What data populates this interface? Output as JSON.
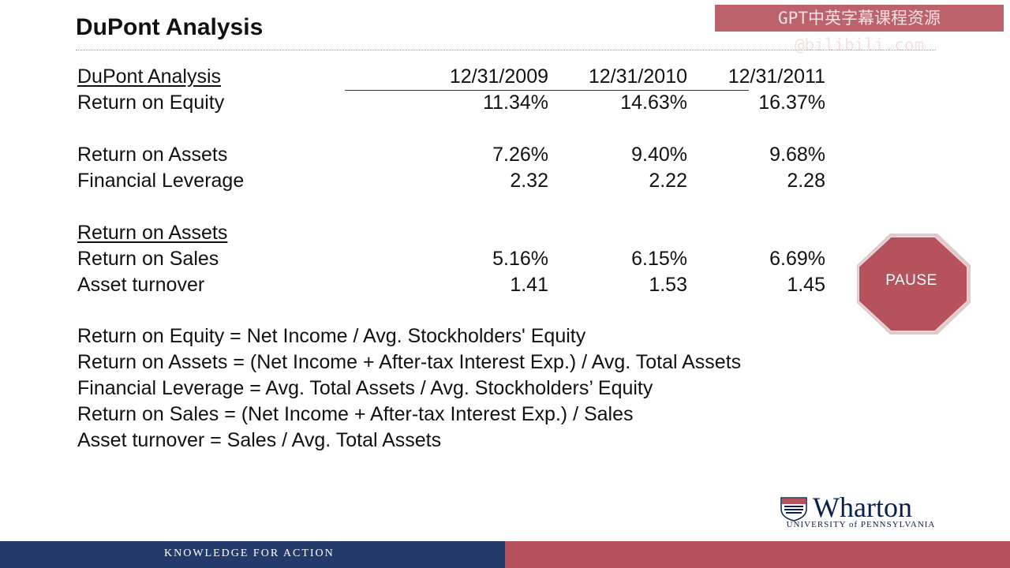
{
  "slide": {
    "title": "DuPont Analysis",
    "watermark": "GPT中英字幕课程资源@bilibili.com"
  },
  "table": {
    "header_label": "DuPont Analysis",
    "columns": [
      "12/31/2009",
      "12/31/2010",
      "12/31/2011"
    ],
    "rows": [
      {
        "label": "Return on Equity",
        "values": [
          "11.34%",
          "14.63%",
          "16.37%"
        ]
      },
      {
        "label": "Return on Assets",
        "values": [
          "7.26%",
          "9.40%",
          "9.68%"
        ]
      },
      {
        "label": "Financial Leverage",
        "values": [
          "2.32",
          "2.22",
          "2.28"
        ]
      },
      {
        "label": "Return on Assets",
        "values": []
      },
      {
        "label": "Return on Sales",
        "values": [
          "5.16%",
          "6.15%",
          "6.69%"
        ]
      },
      {
        "label": "Asset turnover",
        "values": [
          "1.41",
          "1.53",
          "1.45"
        ]
      }
    ]
  },
  "formulas": [
    "Return on Equity = Net Income / Avg. Stockholders' Equity",
    "Return on Assets = (Net Income + After-tax Interest Exp.) / Avg. Total Assets",
    "Financial Leverage = Avg. Total Assets / Avg. Stockholders’ Equity",
    "Return on Sales =  (Net Income + After-tax Interest Exp.) / Sales",
    "Asset turnover = Sales / Avg. Total Assets"
  ],
  "pause_button": {
    "label": "PAUSE",
    "icon": "stop-sign-icon",
    "color": "#b5525c"
  },
  "logo": {
    "wordmark": "Wharton",
    "subtitle": "UNIVERSITY of PENNSYLVANIA",
    "icon": "penn-shield-icon"
  },
  "footer": {
    "tagline": "KNOWLEDGE FOR ACTION",
    "left_color": "#24396c",
    "right_color": "#b5525c"
  }
}
